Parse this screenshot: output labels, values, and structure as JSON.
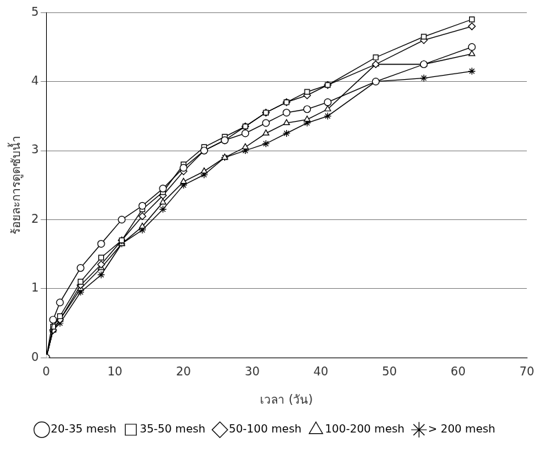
{
  "chart_data": {
    "type": "line",
    "x_label": "เวลา (วัน)",
    "y_label": "ร้อยละการดูดซับน้ำ",
    "x": [
      0,
      1,
      2,
      5,
      8,
      11,
      14,
      17,
      20,
      23,
      26,
      29,
      32,
      35,
      38,
      41,
      48,
      55,
      62
    ],
    "series": [
      {
        "name": "20-35 mesh",
        "color": "#000000",
        "marker": "circle",
        "line_style": "solid",
        "values": [
          0,
          0.55,
          0.8,
          1.3,
          1.65,
          2.0,
          2.2,
          2.45,
          2.75,
          3.0,
          3.15,
          3.25,
          3.4,
          3.55,
          3.6,
          3.7,
          4.0,
          4.25,
          4.5
        ]
      },
      {
        "name": "35-50 mesh",
        "color": "#000000",
        "marker": "square",
        "line_style": "solid",
        "values": [
          0,
          0.45,
          0.6,
          1.1,
          1.45,
          1.7,
          2.15,
          2.4,
          2.8,
          3.05,
          3.2,
          3.35,
          3.55,
          3.7,
          3.85,
          3.95,
          4.35,
          4.65,
          4.9
        ]
      },
      {
        "name": "50-100 mesh",
        "color": "#000000",
        "marker": "diamond",
        "line_style": "solid",
        "values": [
          0,
          0.4,
          0.55,
          1.05,
          1.35,
          1.7,
          2.05,
          2.35,
          2.7,
          3.0,
          3.15,
          3.35,
          3.55,
          3.7,
          3.8,
          3.95,
          4.25,
          4.6,
          4.8
        ]
      },
      {
        "name": "100-200 mesh",
        "color": "#000000",
        "marker": "triangle",
        "line_style": "solid",
        "values": [
          0,
          0.4,
          0.55,
          1.0,
          1.3,
          1.65,
          1.9,
          2.25,
          2.55,
          2.7,
          2.9,
          3.05,
          3.25,
          3.4,
          3.45,
          3.6,
          4.25,
          4.25,
          4.4
        ]
      },
      {
        "name": "> 200 mesh",
        "color": "#000000",
        "marker": "star",
        "line_style": "solid",
        "values": [
          0,
          0.4,
          0.5,
          0.95,
          1.2,
          1.65,
          1.85,
          2.15,
          2.5,
          2.65,
          2.9,
          3.0,
          3.1,
          3.25,
          3.4,
          3.5,
          4.0,
          4.05,
          4.15
        ]
      }
    ],
    "xlim": [
      0,
      70
    ],
    "xticks": [
      0,
      10,
      20,
      30,
      40,
      50,
      60,
      70
    ],
    "ylim": [
      0,
      5
    ],
    "yticks": [
      0,
      1,
      2,
      3,
      4,
      5
    ],
    "grid": true,
    "legend": "bottom"
  }
}
